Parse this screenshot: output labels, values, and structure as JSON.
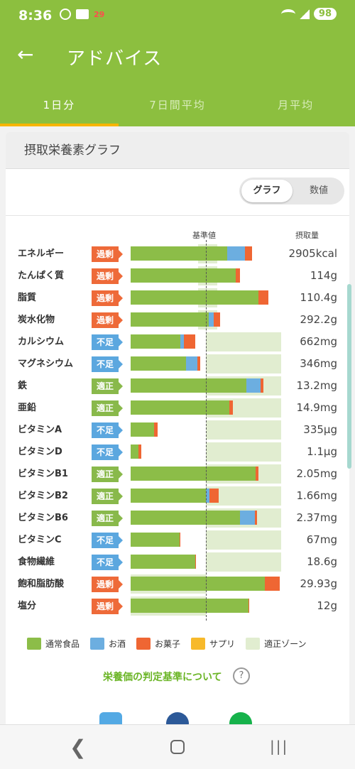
{
  "status_bar": {
    "time": "8:36",
    "notif_badge": "29",
    "battery": "98"
  },
  "app_bar": {
    "title": "アドバイス"
  },
  "tabs": [
    {
      "label": "1日分",
      "active": true
    },
    {
      "label": "7日間平均",
      "active": false
    },
    {
      "label": "月平均",
      "active": false
    }
  ],
  "card": {
    "title": "摂取栄養素グラフ",
    "toggle": {
      "graph": "グラフ",
      "values": "数値",
      "selected": "グラフ"
    },
    "col_baseline": "基準値",
    "col_intake": "摂取量"
  },
  "colors": {
    "food": "#8cbd48",
    "alcohol": "#6caee0",
    "snack": "#ef6633",
    "supplement": "#f7b92b",
    "zone": "#e1edd0",
    "over": "#ee6a39",
    "short": "#5ba7df",
    "ok": "#89b94b"
  },
  "chart_data": {
    "type": "bar",
    "stacked": true,
    "scale_note_units": "ratio to 基準値 (1.0 = reference line)",
    "x_range_ratio": [
      0,
      2
    ],
    "nutrients": [
      {
        "name": "エネルギー",
        "status": "過剰",
        "amount": "2905kcal",
        "food": 1.28,
        "alcohol": 0.24,
        "snack": 0.09,
        "supplement": 0,
        "zone": [
          0.9,
          1.15
        ]
      },
      {
        "name": "たんぱく質",
        "status": "過剰",
        "amount": "114g",
        "food": 1.4,
        "alcohol": 0.0,
        "snack": 0.05,
        "supplement": 0,
        "zone": [
          0.9,
          1.15
        ]
      },
      {
        "name": "脂質",
        "status": "過剰",
        "amount": "110.4g",
        "food": 1.7,
        "alcohol": 0.0,
        "snack": 0.13,
        "supplement": 0,
        "zone": [
          0.9,
          1.15
        ]
      },
      {
        "name": "炭水化物",
        "status": "過剰",
        "amount": "292.2g",
        "food": 1.04,
        "alcohol": 0.06,
        "snack": 0.09,
        "supplement": 0,
        "zone": [
          0.9,
          1.15
        ]
      },
      {
        "name": "カルシウム",
        "status": "不足",
        "amount": "662mg",
        "food": 0.66,
        "alcohol": 0.05,
        "snack": 0.15,
        "supplement": 0,
        "zone": [
          1.0,
          2.0
        ]
      },
      {
        "name": "マグネシウム",
        "status": "不足",
        "amount": "346mg",
        "food": 0.74,
        "alcohol": 0.15,
        "snack": 0.03,
        "supplement": 0,
        "zone": [
          1.0,
          2.0
        ]
      },
      {
        "name": "鉄",
        "status": "適正",
        "amount": "13.2mg",
        "food": 1.54,
        "alcohol": 0.19,
        "snack": 0.03,
        "supplement": 0,
        "zone": [
          1.0,
          2.0
        ]
      },
      {
        "name": "亜鉛",
        "status": "適正",
        "amount": "14.9mg",
        "food": 1.31,
        "alcohol": 0.0,
        "snack": 0.05,
        "supplement": 0,
        "zone": [
          1.0,
          2.0
        ]
      },
      {
        "name": "ビタミンA",
        "status": "不足",
        "amount": "335μg",
        "food": 0.31,
        "alcohol": 0.0,
        "snack": 0.05,
        "supplement": 0,
        "zone": [
          1.0,
          2.0
        ]
      },
      {
        "name": "ビタミンD",
        "status": "不足",
        "amount": "1.1μg",
        "food": 0.1,
        "alcohol": 0.0,
        "snack": 0.04,
        "supplement": 0,
        "zone": [
          1.0,
          2.0
        ]
      },
      {
        "name": "ビタミンB1",
        "status": "適正",
        "amount": "2.05mg",
        "food": 1.66,
        "alcohol": 0.0,
        "snack": 0.04,
        "supplement": 0,
        "zone": [
          1.0,
          2.0
        ]
      },
      {
        "name": "ビタミンB2",
        "status": "適正",
        "amount": "1.66mg",
        "food": 1.0,
        "alcohol": 0.05,
        "snack": 0.12,
        "supplement": 0,
        "zone": [
          1.0,
          2.0
        ]
      },
      {
        "name": "ビタミンB6",
        "status": "適正",
        "amount": "2.37mg",
        "food": 1.45,
        "alcohol": 0.2,
        "snack": 0.03,
        "supplement": 0,
        "zone": [
          1.0,
          2.0
        ]
      },
      {
        "name": "ビタミンC",
        "status": "不足",
        "amount": "67mg",
        "food": 0.65,
        "alcohol": 0.0,
        "snack": 0.01,
        "supplement": 0,
        "zone": [
          1.0,
          2.0
        ]
      },
      {
        "name": "食物繊維",
        "status": "不足",
        "amount": "18.6g",
        "food": 0.86,
        "alcohol": 0.0,
        "snack": 0.01,
        "supplement": 0,
        "zone": [
          1.0,
          2.0
        ]
      },
      {
        "name": "飽和脂肪酸",
        "status": "過剰",
        "amount": "29.93g",
        "food": 1.78,
        "alcohol": 0.0,
        "snack": 0.2,
        "supplement": 0,
        "zone": [
          0.0,
          1.0
        ]
      },
      {
        "name": "塩分",
        "status": "過剰",
        "amount": "12g",
        "food": 1.57,
        "alcohol": 0.0,
        "snack": 0.01,
        "supplement": 0,
        "zone": [
          0.0,
          1.0
        ]
      }
    ]
  },
  "legend": [
    {
      "key": "food",
      "label": "通常食品"
    },
    {
      "key": "alcohol",
      "label": "お酒"
    },
    {
      "key": "snack",
      "label": "お菓子"
    },
    {
      "key": "supplement",
      "label": "サプリ"
    },
    {
      "key": "zone",
      "label": "適正ゾーン"
    }
  ],
  "criteria_link": "栄養価の判定基準について",
  "help_icon_glyph": "?",
  "share_icons": [
    "twitter-icon",
    "facebook-icon",
    "line-icon"
  ]
}
